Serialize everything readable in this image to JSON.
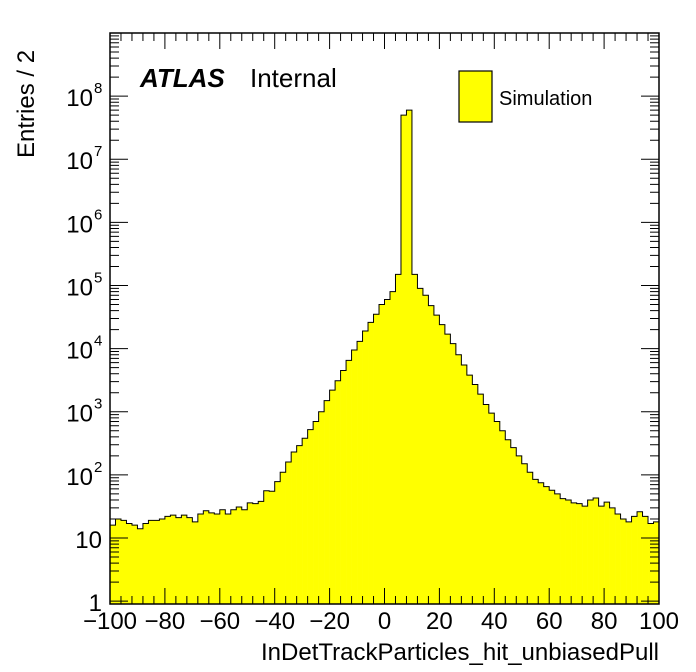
{
  "chart_data": {
    "type": "bar",
    "title": "",
    "xlabel": "InDetTrackParticles_hit_unbiasedPull",
    "ylabel": "Entries / 2",
    "xlim": [
      -100,
      100
    ],
    "ylim": [
      0.9,
      1000000000.0
    ],
    "yscale": "log",
    "bin_width": 2,
    "fill_color": "#ffff00",
    "edge_color": "#000000",
    "x_ticks": [
      "−100",
      "−80",
      "−60",
      "−40",
      "−20",
      "0",
      "20",
      "40",
      "60",
      "80",
      "100"
    ],
    "y_ticks": [
      {
        "base": "1",
        "exp": ""
      },
      {
        "base": "10",
        "exp": ""
      },
      {
        "base": "10",
        "exp": "2"
      },
      {
        "base": "10",
        "exp": "3"
      },
      {
        "base": "10",
        "exp": "4"
      },
      {
        "base": "10",
        "exp": "5"
      },
      {
        "base": "10",
        "exp": "6"
      },
      {
        "base": "10",
        "exp": "7"
      },
      {
        "base": "10",
        "exp": "8"
      }
    ],
    "legend": {
      "entries": [
        "Simulation"
      ],
      "placement": "top-right"
    },
    "annotation": {
      "bold": "ATLAS",
      "normal": "Internal"
    },
    "series": [
      {
        "name": "Simulation",
        "x_edges_start": -100,
        "values": [
          16,
          20,
          19,
          17,
          16,
          14,
          17,
          19,
          19,
          20,
          22,
          23,
          21,
          23,
          21,
          18,
          24,
          27,
          25,
          24,
          28,
          24,
          28,
          31,
          28,
          36,
          35,
          38,
          56,
          55,
          78,
          110,
          160,
          230,
          290,
          380,
          520,
          700,
          1000,
          1500,
          2200,
          3100,
          4500,
          6500,
          9500,
          13000,
          19000,
          26000,
          35000,
          50000,
          60000,
          80000,
          150000,
          50000000,
          60000000,
          150000,
          90000,
          70000,
          48000,
          34000,
          24000,
          17000,
          12000,
          8000,
          5500,
          3800,
          2700,
          1900,
          1300,
          950,
          700,
          500,
          360,
          270,
          200,
          150,
          110,
          85,
          75,
          65,
          57,
          50,
          42,
          40,
          36,
          35,
          32,
          40,
          43,
          32,
          37,
          30,
          24,
          20,
          18,
          22,
          26,
          22,
          17,
          18
        ]
      }
    ]
  }
}
